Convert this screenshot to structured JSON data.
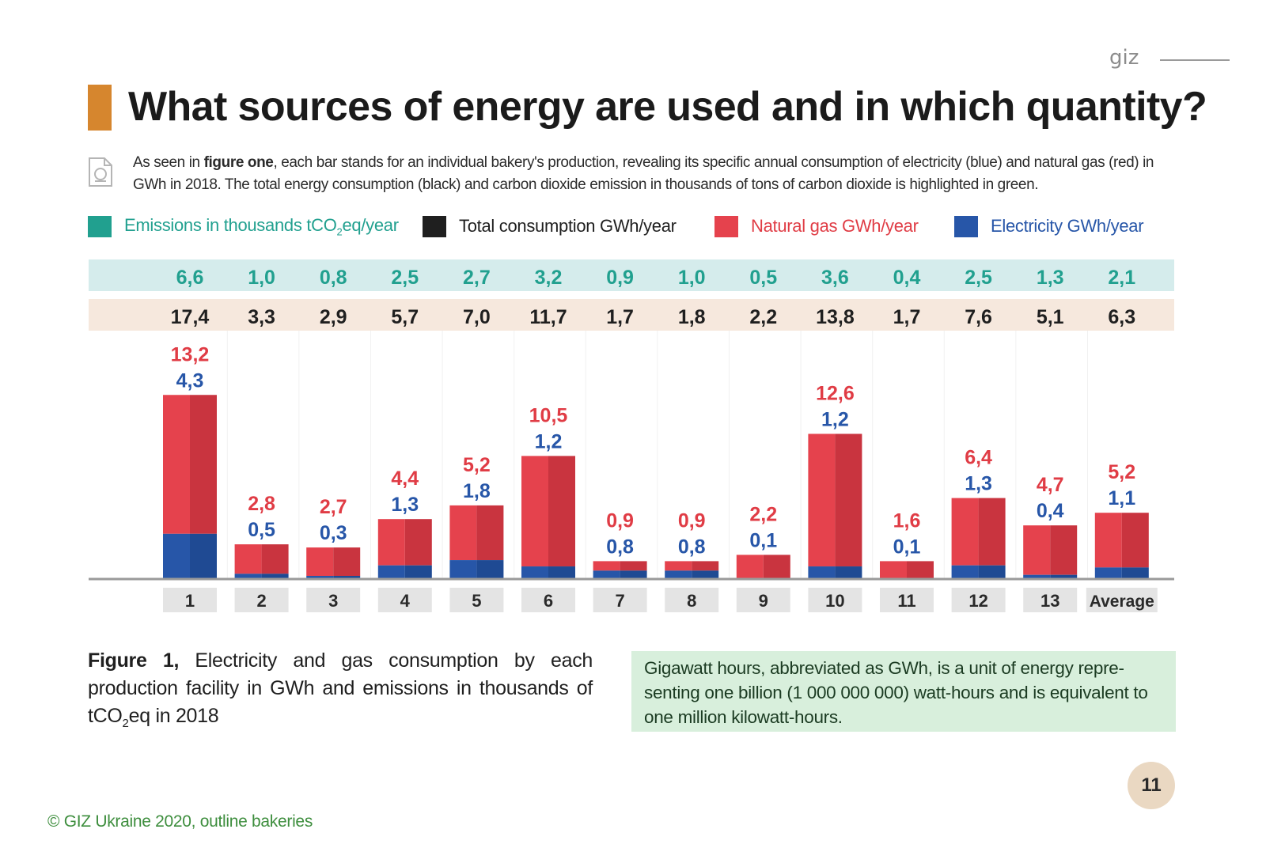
{
  "brand": "giz",
  "title": "What sources of energy are used and in which quantity?",
  "intro": {
    "part1": "As seen in ",
    "bold": "figure one",
    "part2": ", each bar stands for an individual bakery's production, revealing its specific annual consumption of electricity (blue) and natural gas (red) in GWh in 2018. The total energy consumption (black) and carbon dioxide emission in thousands of tons of carbon dioxide is highlighted in green."
  },
  "legend": [
    {
      "label_pre": "Emissions in thousands tCO",
      "label_sub": "2",
      "label_post": "eq/year",
      "color": "#21a08f"
    },
    {
      "label_pre": "Total consumption GWh/year",
      "label_sub": "",
      "label_post": "",
      "color": "#1f1f1f"
    },
    {
      "label_pre": "Natural gas GWh/year",
      "label_sub": "",
      "label_post": "",
      "color": "#e5424d"
    },
    {
      "label_pre": "Electricity GWh/year",
      "label_sub": "",
      "label_post": "",
      "color": "#2756a8"
    }
  ],
  "colors": {
    "emissions_band": "#d5ecec",
    "total_band": "#f6e8dd",
    "gas": "#e5424d",
    "gas_dark": "#c9343f",
    "electricity": "#2756a8",
    "electricity_dark": "#1f4a93",
    "emissions_text": "#21a08f",
    "gas_text": "#e03c45",
    "electricity_text": "#2756a8",
    "category_box": "#e4e4e4"
  },
  "chart_data": {
    "type": "bar",
    "stacked": true,
    "categories": [
      "1",
      "2",
      "3",
      "4",
      "5",
      "6",
      "7",
      "8",
      "9",
      "10",
      "11",
      "12",
      "13",
      "Average"
    ],
    "series": [
      {
        "name": "Electricity GWh/year",
        "values": [
          4.3,
          0.5,
          0.3,
          1.3,
          1.8,
          1.2,
          0.8,
          0.8,
          0.1,
          1.2,
          0.1,
          1.3,
          0.4,
          1.1
        ],
        "labels": [
          "4,3",
          "0,5",
          "0,3",
          "1,3",
          "1,8",
          "1,2",
          "0,8",
          "0,8",
          "0,1",
          "1,2",
          "0,1",
          "1,3",
          "0,4",
          "1,1"
        ]
      },
      {
        "name": "Natural gas GWh/year",
        "values": [
          13.2,
          2.8,
          2.7,
          4.4,
          5.2,
          10.5,
          0.9,
          0.9,
          2.2,
          12.6,
          1.6,
          6.4,
          4.7,
          5.2
        ],
        "labels": [
          "13,2",
          "2,8",
          "2,7",
          "4,4",
          "5,2",
          "10,5",
          "0,9",
          "0,9",
          "2,2",
          "12,6",
          "1,6",
          "6,4",
          "4,7",
          "5,2"
        ]
      }
    ],
    "totals": {
      "name": "Total consumption GWh/year",
      "values": [
        17.4,
        3.3,
        2.9,
        5.7,
        7.0,
        11.7,
        1.7,
        1.8,
        2.2,
        13.8,
        1.7,
        7.6,
        5.1,
        6.3
      ],
      "labels": [
        "17,4",
        "3,3",
        "2,9",
        "5,7",
        "7,0",
        "11,7",
        "1,7",
        "1,8",
        "2,2",
        "13,8",
        "1,7",
        "7,6",
        "5,1",
        "6,3"
      ]
    },
    "emissions": {
      "name": "Emissions in thousands tCO2eq/year",
      "values": [
        6.6,
        1.0,
        0.8,
        2.5,
        2.7,
        3.2,
        0.9,
        1.0,
        0.5,
        3.6,
        0.4,
        2.5,
        1.3,
        2.1
      ],
      "labels": [
        "6,6",
        "1,0",
        "0,8",
        "2,5",
        "2,7",
        "3,2",
        "0,9",
        "1,0",
        "0,5",
        "3,6",
        "0,4",
        "2,5",
        "1,3",
        "2,1"
      ]
    }
  },
  "caption": {
    "bold": "Figure 1,",
    "text_pre": " Electricity and gas consumption by each production facility in GWh and emissions in thousands of tCO",
    "sub": "2",
    "text_post": "eq in 2018"
  },
  "info_box": "Gigawatt hours, abbreviated as GWh, is a unit of energy repre-senting one billion (1 000 000 000) watt-hours and is equivalent to one million kilowatt-hours.",
  "page_number": "11",
  "copyright": "© GIZ Ukraine 2020, outline bakeries"
}
